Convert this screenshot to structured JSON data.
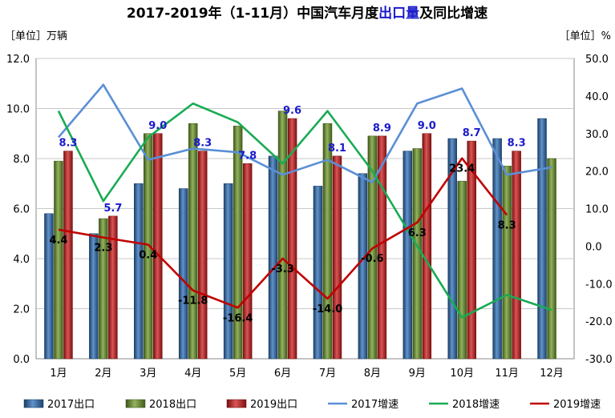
{
  "chart_data": {
    "type": "bar+line",
    "title_main": "2017-2019年（1-11月）中国汽车月度",
    "title_highlight": "出口量",
    "title_tail": "及同比增速",
    "left_unit_label": "［单位］万辆",
    "right_unit_label": "［单位］%",
    "categories": [
      "1月",
      "2月",
      "3月",
      "4月",
      "5月",
      "6月",
      "7月",
      "8月",
      "9月",
      "10月",
      "11月",
      "12月"
    ],
    "left_axis": {
      "min": 0,
      "max": 12,
      "step": 2,
      "tick_labels": [
        "0.0",
        "2.0",
        "4.0",
        "6.0",
        "8.0",
        "10.0",
        "12.0"
      ]
    },
    "right_axis": {
      "min": -30,
      "max": 50,
      "step": 10,
      "tick_labels": [
        "-30.0",
        "-20.0",
        "-10.0",
        "0.0",
        "10.0",
        "20.0",
        "30.0",
        "40.0",
        "50.0"
      ]
    },
    "grid": true,
    "legend_position": "bottom",
    "bar_series": [
      {
        "name": "2017出口",
        "color": "#2e6fb8",
        "values": [
          5.8,
          5.0,
          7.0,
          6.8,
          7.0,
          8.1,
          6.9,
          7.4,
          8.3,
          8.8,
          8.8,
          9.6
        ]
      },
      {
        "name": "2018出口",
        "color": "#6e9a2a",
        "values": [
          7.9,
          5.6,
          9.0,
          9.4,
          9.3,
          9.9,
          9.4,
          8.9,
          8.4,
          7.1,
          7.7,
          8.0
        ]
      },
      {
        "name": "2019出口",
        "color": "#d01c1c",
        "values": [
          8.3,
          5.7,
          9.0,
          8.3,
          7.8,
          9.6,
          8.1,
          8.9,
          9.0,
          8.7,
          8.3,
          null
        ],
        "labels": [
          "8.3",
          "5.7",
          "9.0",
          "8.3",
          "7.8",
          "9.6",
          "8.1",
          "8.9",
          "9.0",
          "8.7",
          "8.3",
          ""
        ]
      }
    ],
    "line_series": [
      {
        "name": "2017增速",
        "color": "#5b8fd6",
        "values": [
          29,
          43,
          23,
          26,
          25,
          19,
          23,
          17,
          38,
          42,
          19,
          21
        ]
      },
      {
        "name": "2018增速",
        "color": "#1aab54",
        "values": [
          36,
          12,
          29,
          38,
          33,
          22,
          36,
          20,
          0,
          -19,
          -13,
          -17
        ]
      },
      {
        "name": "2019增速",
        "color": "#c00000",
        "values": [
          4.4,
          2.3,
          0.4,
          -11.8,
          -16.4,
          -3.3,
          -14.0,
          -0.6,
          6.3,
          23.4,
          8.3,
          null
        ],
        "labels": [
          "4.4",
          "2.3",
          "0.4",
          "-11.8",
          "-16.4",
          "-3.3",
          "-14.0",
          "-0.6",
          "6.3",
          "23.4",
          "8.3",
          ""
        ]
      }
    ],
    "legend": [
      "2017出口",
      "2018出口",
      "2019出口",
      "2017增速",
      "2018增速",
      "2019增速"
    ]
  }
}
